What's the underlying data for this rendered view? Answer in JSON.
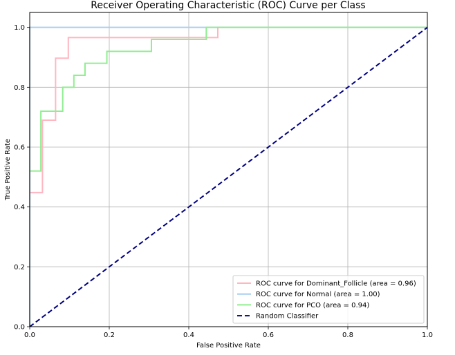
{
  "chart_data": {
    "type": "line",
    "title": "Receiver Operating Characteristic (ROC) Curve per Class",
    "xlabel": "False Positive Rate",
    "ylabel": "True Positive Rate",
    "xlim": [
      0.0,
      1.0
    ],
    "ylim": [
      0.0,
      1.05
    ],
    "xticks": [
      0.0,
      0.2,
      0.4,
      0.6,
      0.8,
      1.0
    ],
    "yticks": [
      0.0,
      0.2,
      0.4,
      0.6,
      0.8,
      1.0
    ],
    "xtick_labels": [
      "0.0",
      "0.2",
      "0.4",
      "0.6",
      "0.8",
      "1.0"
    ],
    "ytick_labels": [
      "0.0",
      "0.2",
      "0.4",
      "0.6",
      "0.8",
      "1.0"
    ],
    "grid": true,
    "legend_position": "lower-right",
    "series": [
      {
        "name": "ROC curve for Dominant_Follicle (area = 0.96)",
        "color": "#ffb6c1",
        "dash": "solid",
        "x": [
          0.0,
          0.032,
          0.032,
          0.065,
          0.065,
          0.097,
          0.097,
          0.452,
          0.452,
          0.473,
          0.473,
          1.0
        ],
        "y": [
          0.448,
          0.448,
          0.69,
          0.69,
          0.897,
          0.897,
          0.966,
          0.966,
          0.966,
          0.966,
          1.0,
          1.0
        ]
      },
      {
        "name": "ROC curve for Normal (area = 1.00)",
        "color": "#a6cff0",
        "dash": "solid",
        "x": [
          0.0,
          0.0,
          1.0
        ],
        "y": [
          0.0,
          1.0,
          1.0
        ]
      },
      {
        "name": "ROC curve for PCO (area = 0.94)",
        "color": "#90ee90",
        "dash": "solid",
        "x": [
          0.0,
          0.028,
          0.028,
          0.083,
          0.083,
          0.111,
          0.111,
          0.139,
          0.139,
          0.194,
          0.194,
          0.306,
          0.306,
          0.444,
          0.444,
          1.0
        ],
        "y": [
          0.52,
          0.52,
          0.72,
          0.72,
          0.8,
          0.8,
          0.84,
          0.84,
          0.88,
          0.88,
          0.92,
          0.92,
          0.96,
          0.96,
          1.0,
          1.0
        ]
      },
      {
        "name": "Random Classifier",
        "color": "#000080",
        "dash": "dashed",
        "x": [
          0.0,
          1.0
        ],
        "y": [
          0.0,
          1.0
        ]
      }
    ]
  }
}
